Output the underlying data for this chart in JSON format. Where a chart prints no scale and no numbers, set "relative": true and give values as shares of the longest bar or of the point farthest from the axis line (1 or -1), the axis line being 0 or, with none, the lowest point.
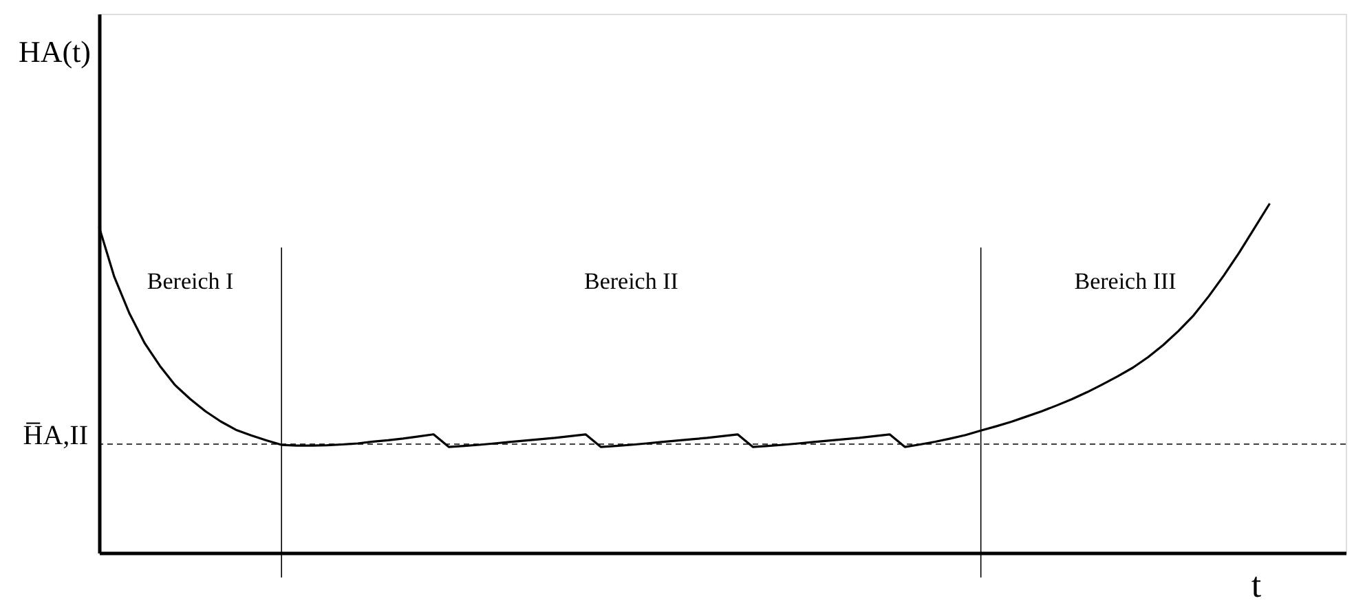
{
  "chart_data": {
    "type": "line",
    "relative": true,
    "ylabel": "HA(t)",
    "xlabel": "t",
    "tick_labels": false,
    "grid": false,
    "marker": "none",
    "line_style": "solid",
    "categories": [
      null,
      null,
      null,
      null,
      null,
      null,
      null,
      null,
      null,
      null,
      null,
      null,
      null,
      null,
      null,
      null,
      null,
      null,
      null,
      null,
      null,
      null,
      null,
      null,
      null,
      null,
      null,
      null,
      null,
      null,
      null,
      null,
      null,
      null,
      null,
      null,
      null,
      null,
      null,
      null,
      null,
      null,
      null,
      null,
      null,
      null,
      null,
      null,
      null,
      null,
      null,
      null,
      null,
      null,
      null,
      null,
      null,
      null,
      null,
      null,
      null,
      null,
      null,
      null,
      null,
      null,
      null,
      null,
      null,
      null,
      null,
      null,
      null,
      null,
      null,
      null,
      null,
      null,
      null,
      null,
      null,
      null,
      null
    ],
    "series": [
      {
        "color": "#000000",
        "values": [
          0.933,
          0.79,
          0.685,
          0.6,
          0.535,
          0.48,
          0.44,
          0.405,
          0.376,
          0.352,
          0.336,
          0.322,
          0.309,
          0.307,
          0.307,
          0.308,
          0.31,
          0.313,
          0.318,
          0.322,
          0.327,
          0.333,
          0.339,
          0.303,
          0.306,
          0.309,
          0.313,
          0.317,
          0.321,
          0.325,
          0.329,
          0.334,
          0.339,
          0.303,
          0.306,
          0.309,
          0.313,
          0.317,
          0.321,
          0.325,
          0.329,
          0.334,
          0.339,
          0.303,
          0.306,
          0.309,
          0.313,
          0.317,
          0.321,
          0.325,
          0.329,
          0.334,
          0.339,
          0.303,
          0.31,
          0.318,
          0.327,
          0.337,
          0.35,
          0.362,
          0.375,
          0.39,
          0.405,
          0.422,
          0.44,
          0.46,
          0.482,
          0.505,
          0.53,
          0.56,
          0.595,
          0.635,
          0.68,
          0.735,
          0.795,
          0.86,
          0.93,
          1,
          null,
          null,
          null,
          null,
          null
        ]
      }
    ],
    "ref_lines": [
      {
        "axis": "y",
        "value": 0.311,
        "label": "H̅A,II",
        "line_style": "dashed",
        "color": "#000000"
      }
    ],
    "annotations": [
      "Bereich I",
      "Bereich II",
      "Bereich III"
    ]
  }
}
